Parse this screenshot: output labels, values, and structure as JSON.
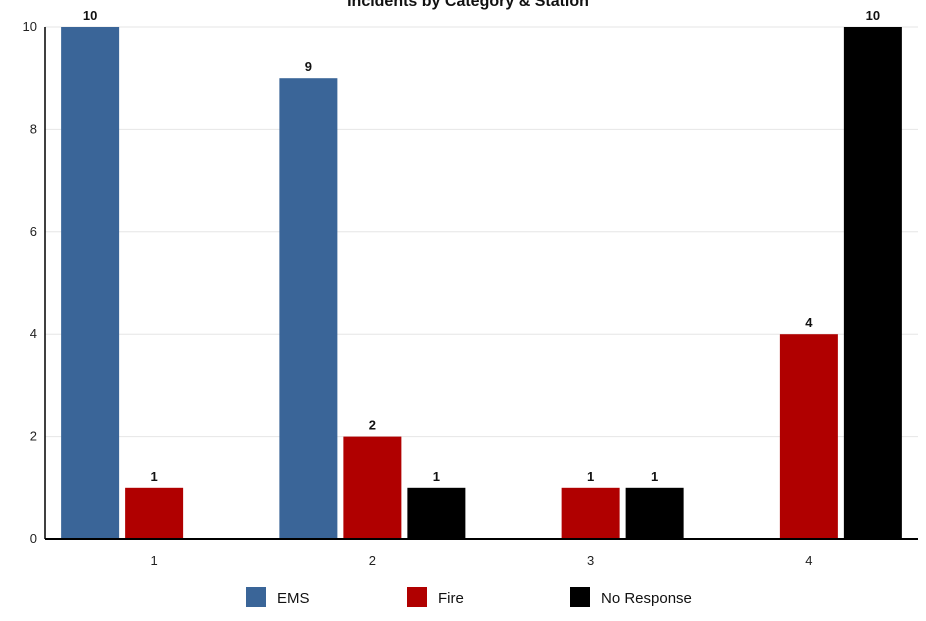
{
  "chart_data": {
    "type": "bar",
    "title": "Incidents by Category & Station",
    "categories": [
      "1",
      "2",
      "3",
      "4"
    ],
    "series": [
      {
        "name": "EMS",
        "color": "#3a6598",
        "values": [
          10,
          9,
          0,
          0
        ]
      },
      {
        "name": "Fire",
        "color": "#b00000",
        "values": [
          1,
          2,
          1,
          4
        ]
      },
      {
        "name": "No Response",
        "color": "#000000",
        "values": [
          0,
          1,
          1,
          10
        ]
      }
    ],
    "ylim": [
      0,
      10
    ],
    "yticks": [
      "0",
      "2",
      "4",
      "6",
      "8",
      "10"
    ],
    "grid": true,
    "legend": "bottom"
  }
}
